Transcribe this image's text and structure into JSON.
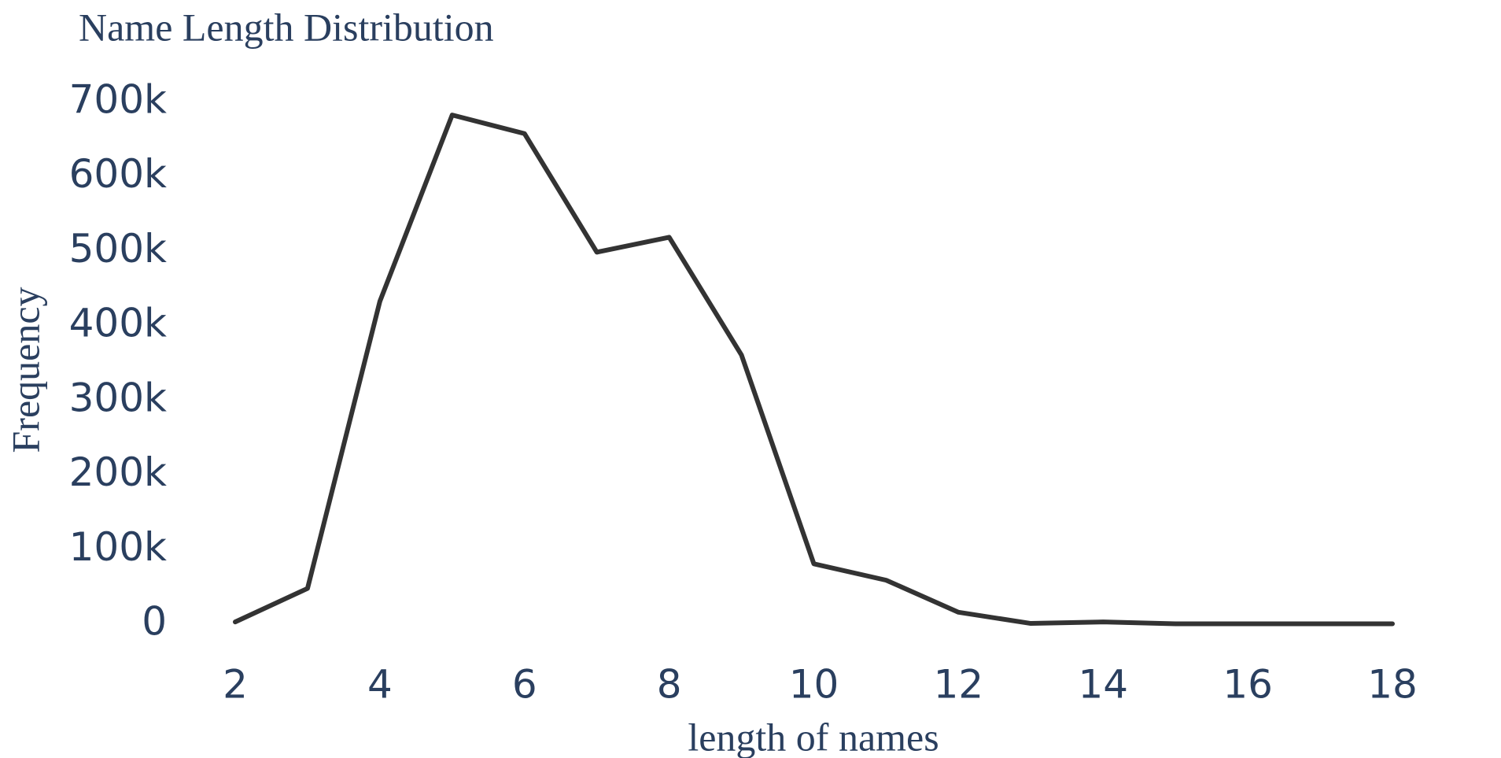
{
  "chart_data": {
    "type": "line",
    "title": "Name Length Distribution",
    "x_label": "length of names",
    "y_label": "Frequency",
    "x": [
      2,
      3,
      4,
      5,
      6,
      7,
      8,
      9,
      10,
      11,
      12,
      13,
      14,
      15,
      16,
      17,
      18
    ],
    "series": [
      {
        "name": "Frequency",
        "color": "#333333",
        "values": [
          3000,
          48000,
          433000,
          683000,
          658000,
          499000,
          519000,
          361000,
          81000,
          59000,
          16000,
          1000,
          3000,
          500,
          500,
          500,
          500
        ]
      }
    ],
    "xlim": [
      2,
      18
    ],
    "xticks": [
      2,
      4,
      6,
      8,
      10,
      12,
      14,
      16,
      18
    ],
    "ylim": [
      0,
      700000
    ],
    "yticks": [
      0,
      {
        "value": 100000,
        "label": "100k"
      },
      {
        "value": 200000,
        "label": "200k"
      },
      {
        "value": 300000,
        "label": "300k"
      },
      {
        "value": 400000,
        "label": "400k"
      },
      {
        "value": 500000,
        "label": "500k"
      },
      {
        "value": 600000,
        "label": "600k"
      },
      {
        "value": 700000,
        "label": "700k"
      }
    ],
    "grid": false
  }
}
